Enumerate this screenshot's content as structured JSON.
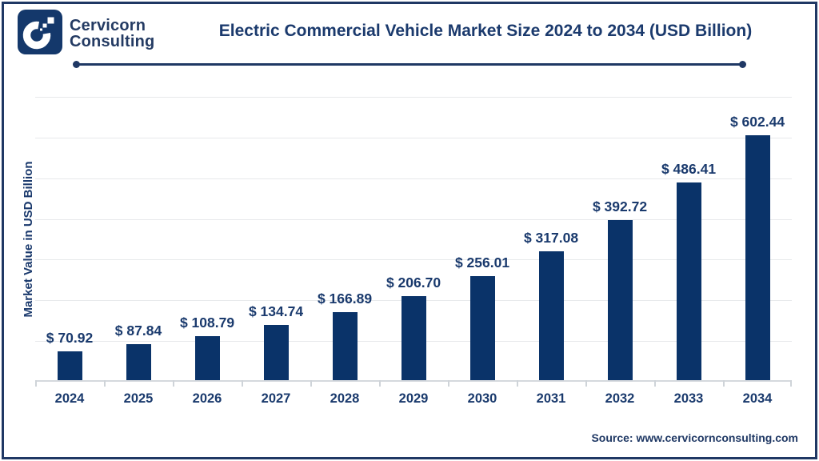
{
  "header": {
    "brand_line1": "Cervicorn",
    "brand_line2": "Consulting",
    "title": "Electric Commercial Vehicle Market Size 2024 to 2034 (USD Billion)"
  },
  "chart_data": {
    "type": "bar",
    "title": "Electric Commercial Vehicle Market Size 2024 to 2034 (USD Billion)",
    "categories": [
      "2024",
      "2025",
      "2026",
      "2027",
      "2028",
      "2029",
      "2030",
      "2031",
      "2032",
      "2033",
      "2034"
    ],
    "values": [
      70.92,
      87.84,
      108.79,
      134.74,
      166.89,
      206.7,
      256.01,
      317.08,
      392.72,
      486.41,
      602.44
    ],
    "value_labels": [
      "$ 70.92",
      "$ 87.84",
      "$ 108.79",
      "$ 134.74",
      "$ 166.89",
      "$ 206.70",
      "$ 256.01",
      "$ 317.08",
      "$ 392.72",
      "$ 486.41",
      "$ 602.44"
    ],
    "xlabel": "",
    "ylabel": "Market Value in USD Billion",
    "ylim": [
      0,
      700
    ],
    "gridline_step": 100,
    "grid": true,
    "legend_position": "none",
    "y_tick_labels_visible": false
  },
  "footer": {
    "source": "Source: www.cervicornconsulting.com"
  },
  "colors": {
    "bar": "#0a3369",
    "text_navy": "#1a3a6d",
    "accent_navy": "#1f3864",
    "gridline": "#e7e9eb",
    "axis_line": "#cfd4d9",
    "background": "#ffffff"
  }
}
